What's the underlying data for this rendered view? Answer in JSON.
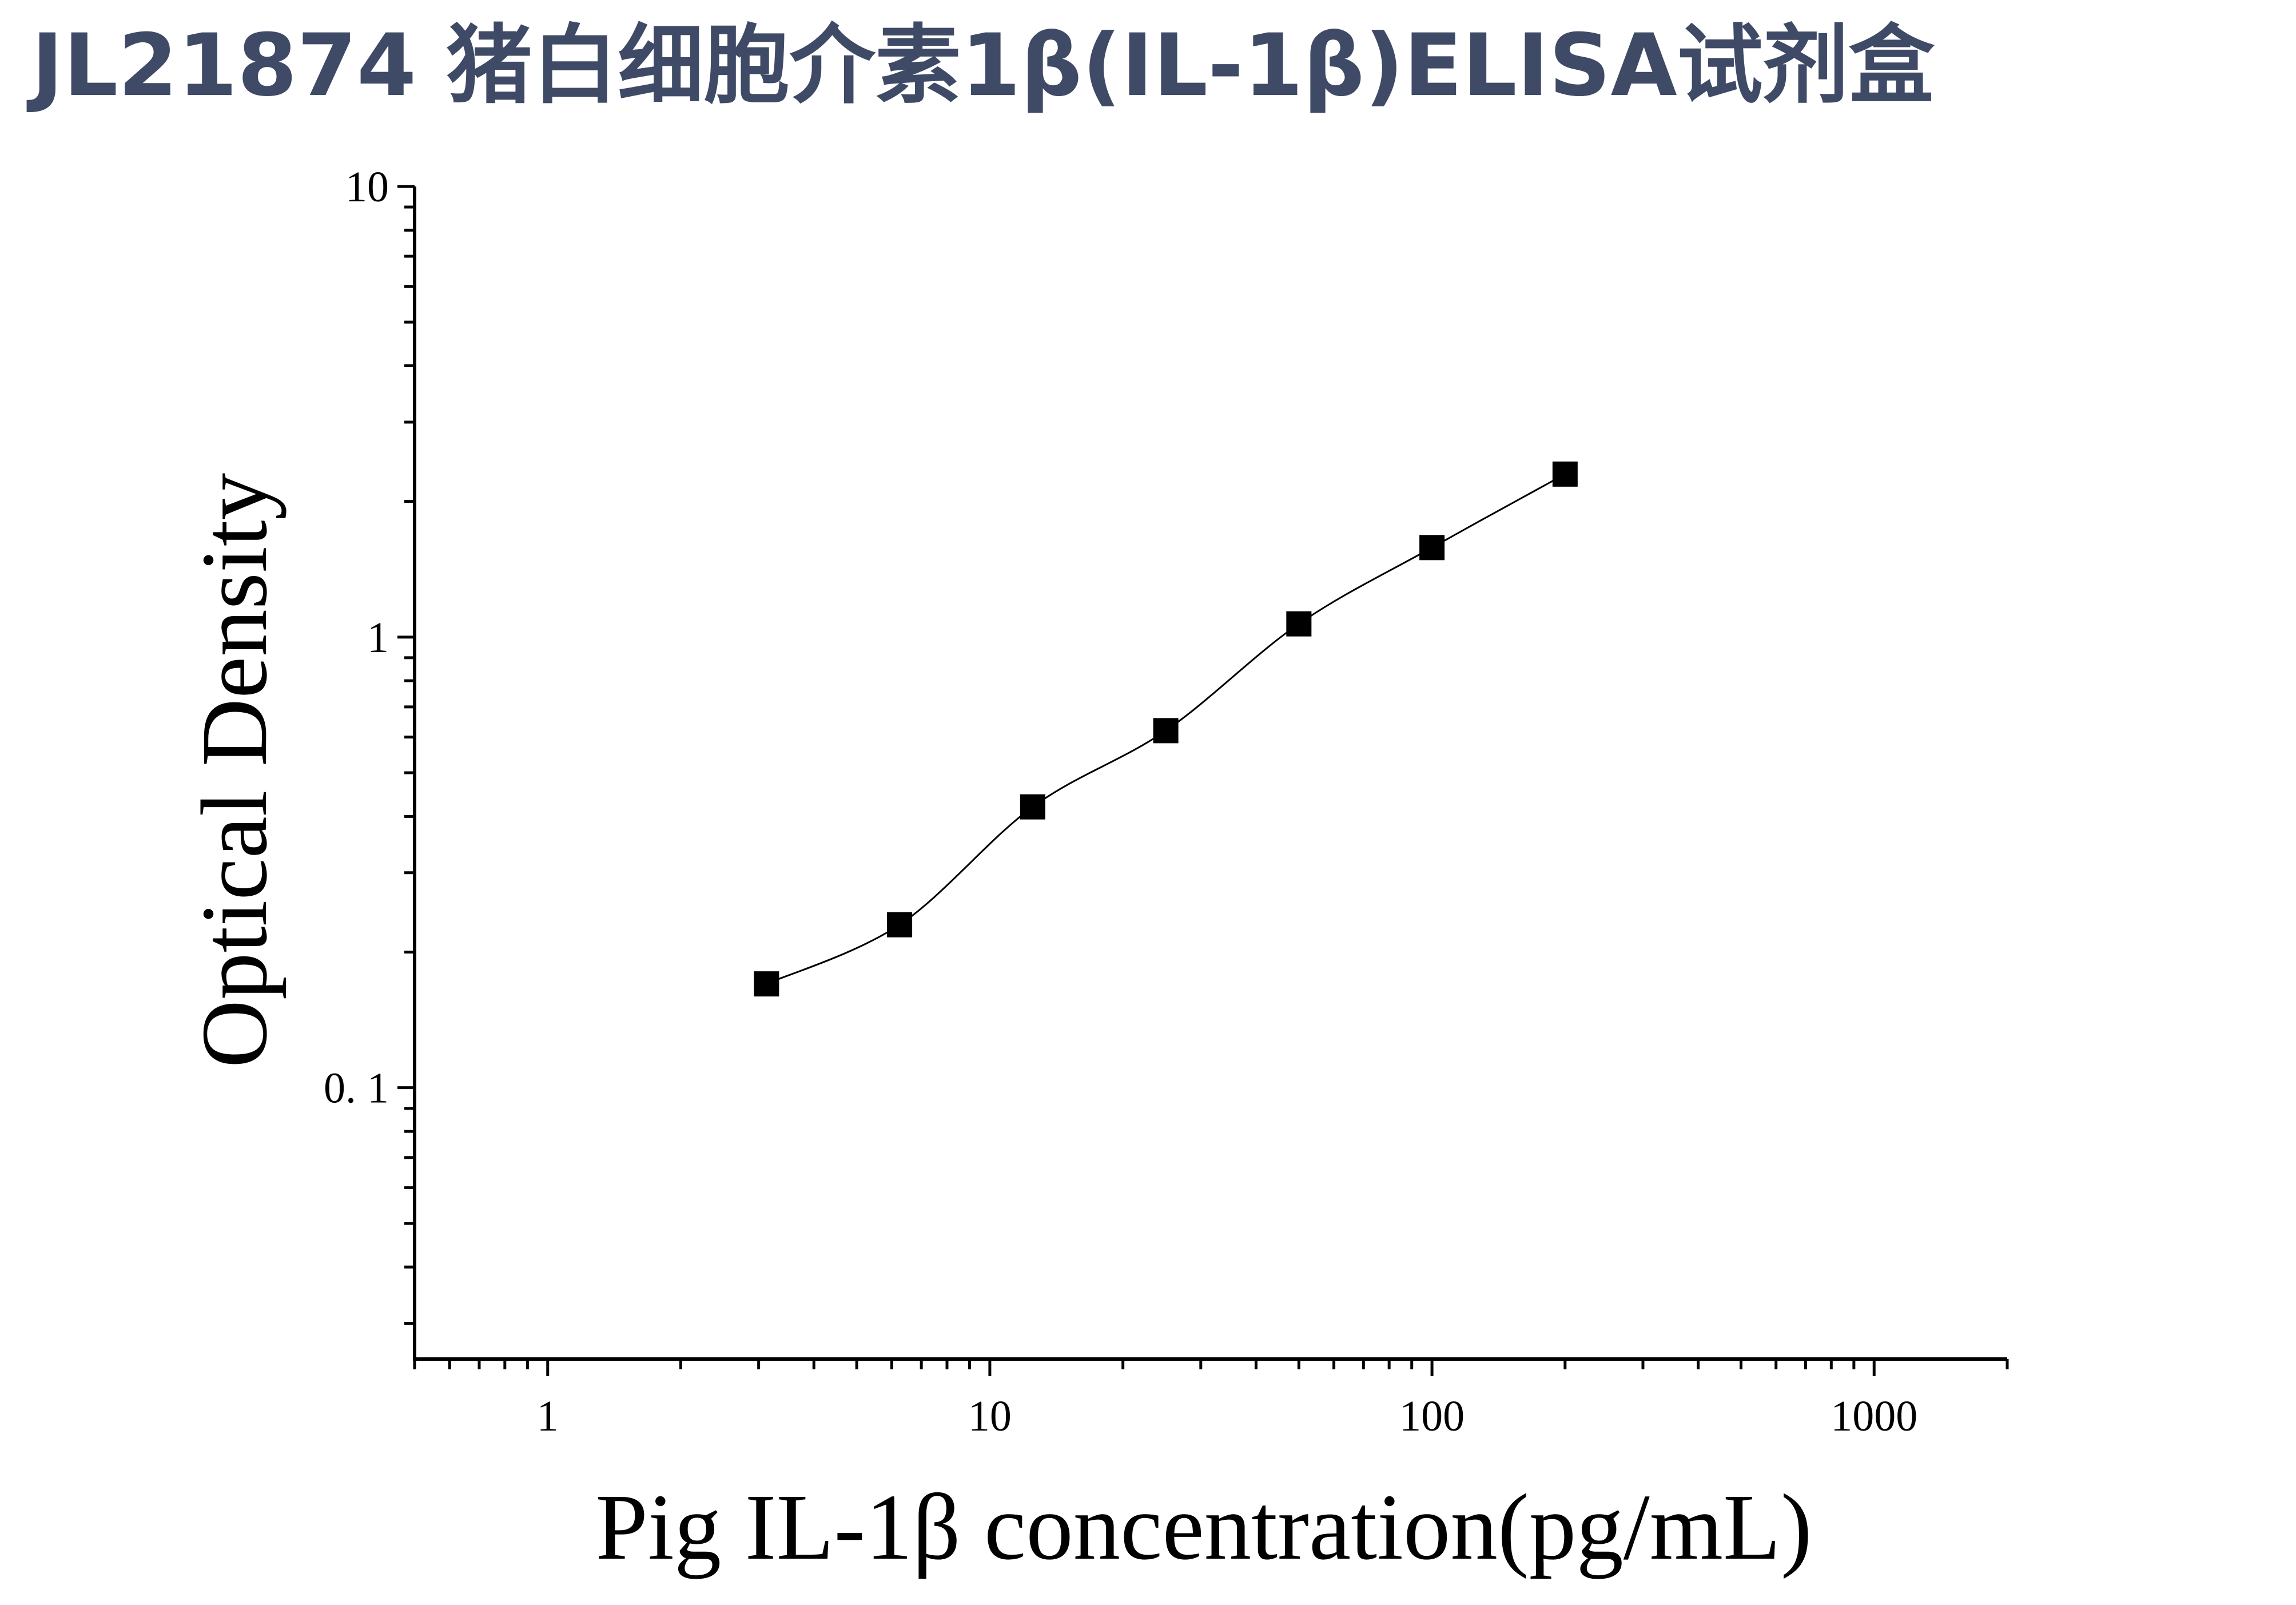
{
  "title": "JL21874 猪白细胞介素1β(IL-1β)ELISA试剂盒",
  "chart_data": {
    "type": "scatter",
    "xlabel": "Pig IL-1β concentration(pg/mL)",
    "ylabel": "Optical Density",
    "x_scale": "log",
    "y_scale": "log",
    "xlim": [
      0.5,
      2000
    ],
    "ylim": [
      0.025,
      10
    ],
    "x_ticks": [
      {
        "value": 1,
        "label": "1"
      },
      {
        "value": 10,
        "label": "10"
      },
      {
        "value": 100,
        "label": "100"
      },
      {
        "value": 1000,
        "label": "1000"
      }
    ],
    "y_ticks": [
      {
        "value": 0.1,
        "label": "0. 1"
      },
      {
        "value": 1,
        "label": "1"
      },
      {
        "value": 10,
        "label": "10"
      }
    ],
    "grid": false,
    "series": [
      {
        "x": [
          3.125,
          6.25,
          12.5,
          25,
          50,
          100,
          200
        ],
        "y": [
          0.17,
          0.23,
          0.42,
          0.62,
          1.07,
          1.58,
          2.3
        ],
        "marker": "square",
        "fit_line": true,
        "color": "#000000"
      }
    ]
  }
}
